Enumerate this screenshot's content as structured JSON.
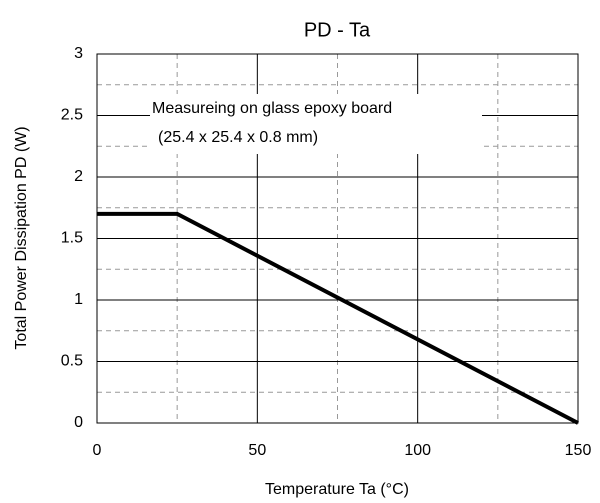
{
  "chart_data": {
    "type": "line",
    "title": "PD - Ta",
    "x_label": "Temperature Ta (°C)",
    "y_label": "Total Power Dissipation PD (W)",
    "annotations": [
      "Measureing on glass epoxy board",
      "(25.4 x 25.4 x  0.8 mm)"
    ],
    "x": [
      0,
      25,
      150
    ],
    "series": [
      {
        "name": "PD",
        "color": "#000000",
        "values": [
          1.7,
          1.7,
          0
        ]
      }
    ],
    "xlim": [
      0,
      150
    ],
    "xticks": [
      0,
      50,
      100,
      150
    ],
    "ylim": [
      0,
      3
    ],
    "yticks": [
      0,
      0.5,
      1,
      1.5,
      2,
      2.5,
      3
    ],
    "minor_xticks": [
      25,
      75,
      125
    ],
    "minor_yticks": [
      0.25,
      0.75,
      1.25,
      1.75,
      2.25,
      2.75
    ],
    "grid": true
  }
}
